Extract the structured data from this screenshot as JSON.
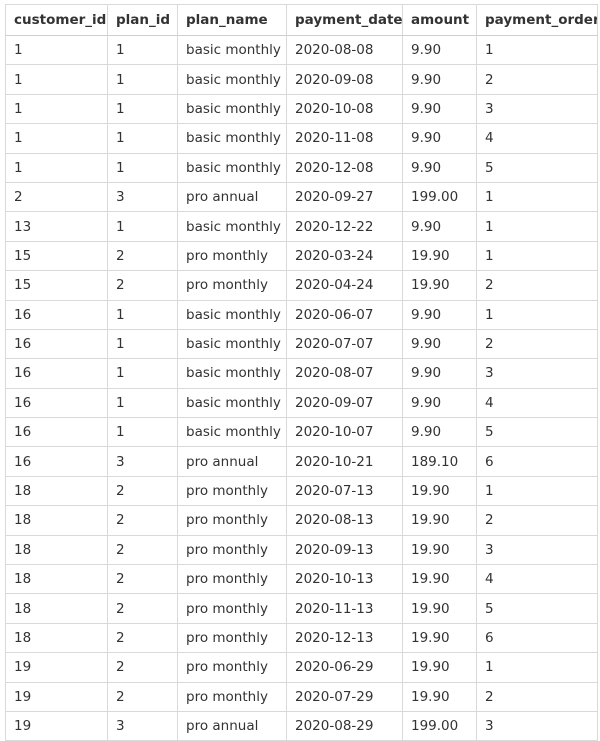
{
  "table": {
    "columns": [
      "customer_id",
      "plan_id",
      "plan_name",
      "payment_date",
      "amount",
      "payment_order"
    ],
    "rows": [
      [
        "1",
        "1",
        "basic monthly",
        "2020-08-08",
        "9.90",
        "1"
      ],
      [
        "1",
        "1",
        "basic monthly",
        "2020-09-08",
        "9.90",
        "2"
      ],
      [
        "1",
        "1",
        "basic monthly",
        "2020-10-08",
        "9.90",
        "3"
      ],
      [
        "1",
        "1",
        "basic monthly",
        "2020-11-08",
        "9.90",
        "4"
      ],
      [
        "1",
        "1",
        "basic monthly",
        "2020-12-08",
        "9.90",
        "5"
      ],
      [
        "2",
        "3",
        "pro annual",
        "2020-09-27",
        "199.00",
        "1"
      ],
      [
        "13",
        "1",
        "basic monthly",
        "2020-12-22",
        "9.90",
        "1"
      ],
      [
        "15",
        "2",
        "pro monthly",
        "2020-03-24",
        "19.90",
        "1"
      ],
      [
        "15",
        "2",
        "pro monthly",
        "2020-04-24",
        "19.90",
        "2"
      ],
      [
        "16",
        "1",
        "basic monthly",
        "2020-06-07",
        "9.90",
        "1"
      ],
      [
        "16",
        "1",
        "basic monthly",
        "2020-07-07",
        "9.90",
        "2"
      ],
      [
        "16",
        "1",
        "basic monthly",
        "2020-08-07",
        "9.90",
        "3"
      ],
      [
        "16",
        "1",
        "basic monthly",
        "2020-09-07",
        "9.90",
        "4"
      ],
      [
        "16",
        "1",
        "basic monthly",
        "2020-10-07",
        "9.90",
        "5"
      ],
      [
        "16",
        "3",
        "pro annual",
        "2020-10-21",
        "189.10",
        "6"
      ],
      [
        "18",
        "2",
        "pro monthly",
        "2020-07-13",
        "19.90",
        "1"
      ],
      [
        "18",
        "2",
        "pro monthly",
        "2020-08-13",
        "19.90",
        "2"
      ],
      [
        "18",
        "2",
        "pro monthly",
        "2020-09-13",
        "19.90",
        "3"
      ],
      [
        "18",
        "2",
        "pro monthly",
        "2020-10-13",
        "19.90",
        "4"
      ],
      [
        "18",
        "2",
        "pro monthly",
        "2020-11-13",
        "19.90",
        "5"
      ],
      [
        "18",
        "2",
        "pro monthly",
        "2020-12-13",
        "19.90",
        "6"
      ],
      [
        "19",
        "2",
        "pro monthly",
        "2020-06-29",
        "19.90",
        "1"
      ],
      [
        "19",
        "2",
        "pro monthly",
        "2020-07-29",
        "19.90",
        "2"
      ],
      [
        "19",
        "3",
        "pro annual",
        "2020-08-29",
        "199.00",
        "3"
      ]
    ]
  }
}
